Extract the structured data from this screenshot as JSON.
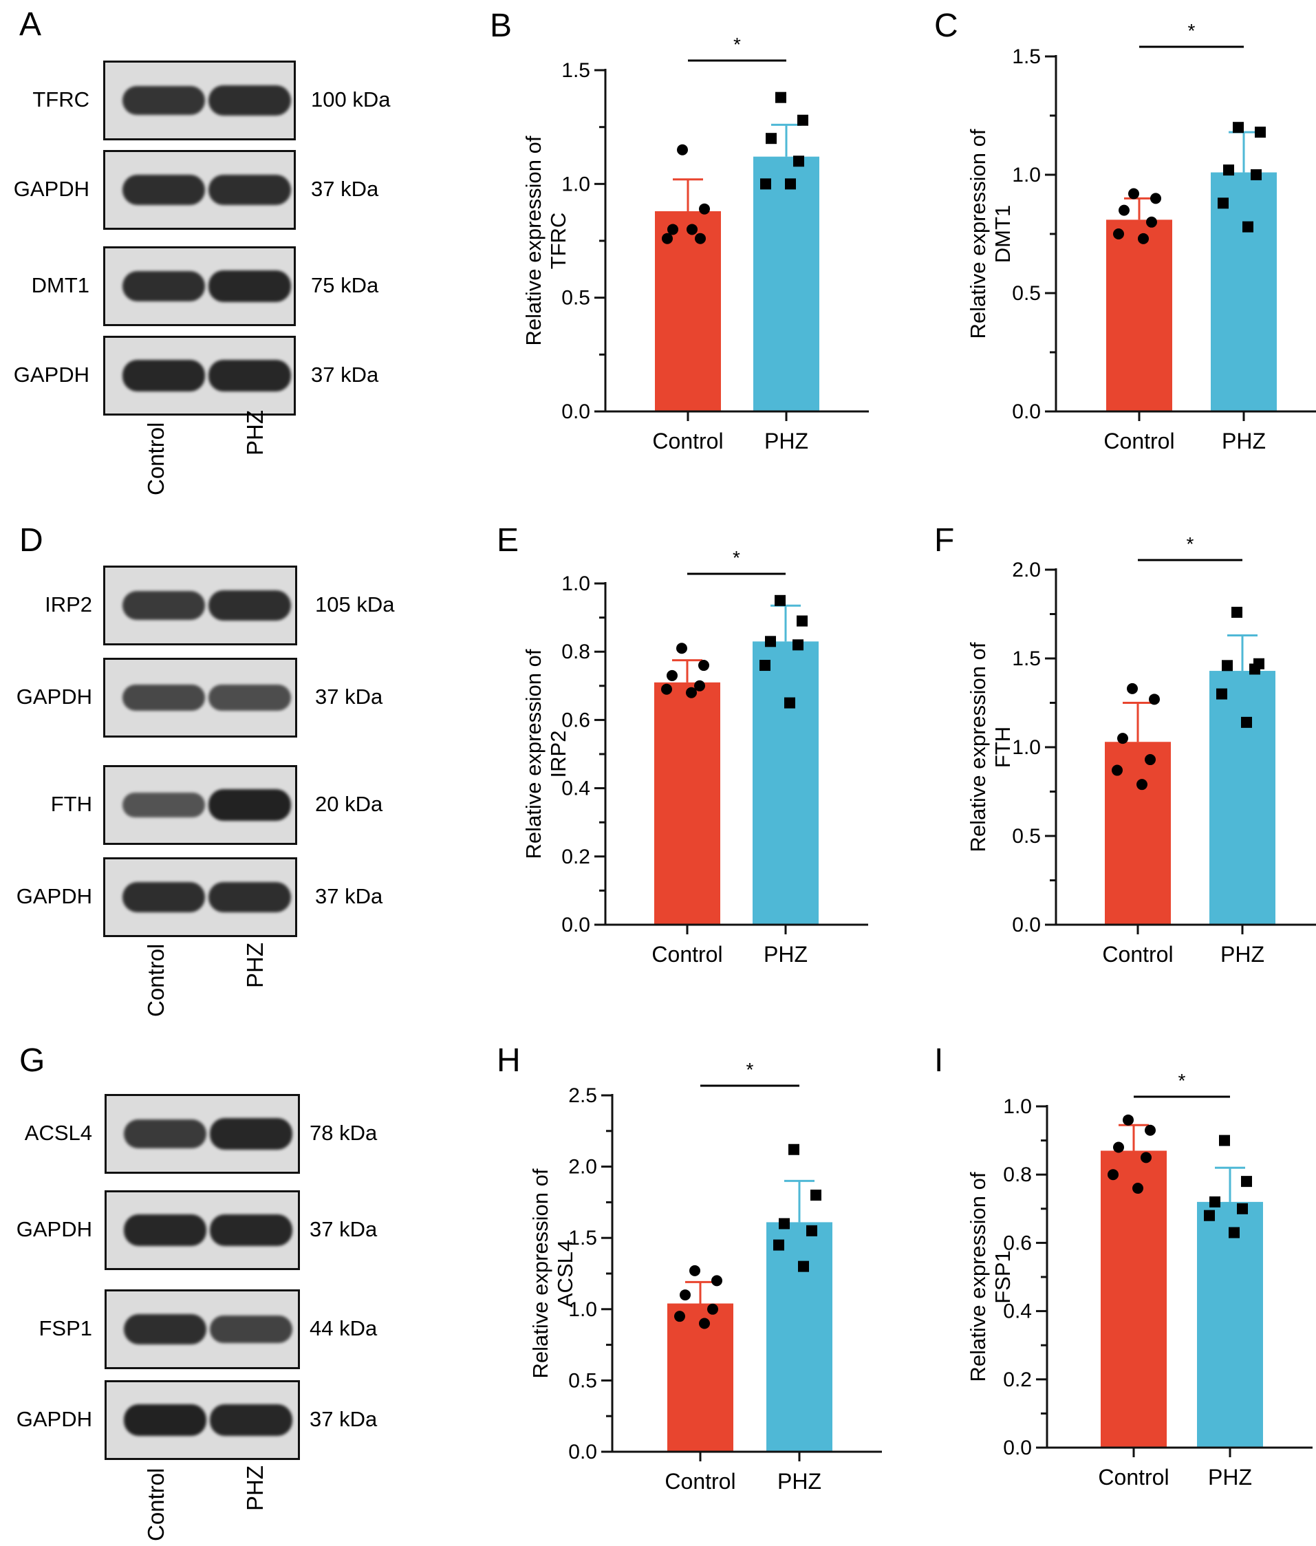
{
  "colors": {
    "control": "#e8452f",
    "phz": "#4fb8d6",
    "axis": "#111111",
    "blot_bg": "#dcdcdc",
    "band": "#1c1c1c"
  },
  "blot_groups": [
    {
      "letter": "A",
      "lanes": [
        "Control",
        "PHZ"
      ],
      "blots": [
        {
          "protein": "TFRC",
          "size": "100 kDa",
          "band_strength": [
            0.8,
            0.85
          ]
        },
        {
          "protein": "GAPDH",
          "size": "37 kDa",
          "band_strength": [
            0.85,
            0.85
          ]
        },
        {
          "protein": "DMT1",
          "size": "75 kDa",
          "band_strength": [
            0.85,
            0.9
          ]
        },
        {
          "protein": "GAPDH",
          "size": "37 kDa",
          "band_strength": [
            0.9,
            0.9
          ]
        }
      ]
    },
    {
      "letter": "D",
      "lanes": [
        "Control",
        "PHZ"
      ],
      "blots": [
        {
          "protein": "IRP2",
          "size": "105 kDa",
          "band_strength": [
            0.75,
            0.85
          ]
        },
        {
          "protein": "GAPDH",
          "size": "37 kDa",
          "band_strength": [
            0.65,
            0.6
          ]
        },
        {
          "protein": "FTH",
          "size": "20 kDa",
          "band_strength": [
            0.55,
            0.95
          ]
        },
        {
          "protein": "GAPDH",
          "size": "37 kDa",
          "band_strength": [
            0.85,
            0.85
          ]
        }
      ]
    },
    {
      "letter": "G",
      "lanes": [
        "Control",
        "PHZ"
      ],
      "blots": [
        {
          "protein": "ACSL4",
          "size": "78 kDa",
          "band_strength": [
            0.75,
            0.9
          ]
        },
        {
          "protein": "GAPDH",
          "size": "37 kDa",
          "band_strength": [
            0.9,
            0.9
          ]
        },
        {
          "protein": "FSP1",
          "size": "44 kDa",
          "band_strength": [
            0.85,
            0.7
          ]
        },
        {
          "protein": "GAPDH",
          "size": "37 kDa",
          "band_strength": [
            0.95,
            0.9
          ]
        }
      ]
    }
  ],
  "chart_data": [
    {
      "letter": "B",
      "type": "bar",
      "categories": [
        "Control",
        "PHZ"
      ],
      "ylabel": [
        "Relative expression of",
        "TFRC"
      ],
      "ylim": [
        0,
        1.5
      ],
      "yticks": [
        "0.0",
        "0.5",
        "1.0",
        "1.5"
      ],
      "values": [
        0.88,
        1.12
      ],
      "errors": [
        0.14,
        0.14
      ],
      "points": [
        [
          1.15,
          0.89,
          0.8,
          0.76,
          0.76,
          0.8
        ],
        [
          1.38,
          1.28,
          1.2,
          1.1,
          1.0,
          1.0
        ]
      ],
      "significance": "*"
    },
    {
      "letter": "C",
      "type": "bar",
      "categories": [
        "Control",
        "PHZ"
      ],
      "ylabel": [
        "Relative expression of",
        "DMT1"
      ],
      "ylim": [
        0,
        1.5
      ],
      "yticks": [
        "0.0",
        "0.5",
        "1.0",
        "1.5"
      ],
      "values": [
        0.81,
        1.01
      ],
      "errors": [
        0.09,
        0.17
      ],
      "points": [
        [
          0.92,
          0.9,
          0.85,
          0.8,
          0.75,
          0.73
        ],
        [
          1.2,
          1.18,
          1.02,
          1.0,
          0.88,
          0.78
        ]
      ],
      "significance": "*"
    },
    {
      "letter": "E",
      "type": "bar",
      "categories": [
        "Control",
        "PHZ"
      ],
      "ylabel": [
        "Relative expression of",
        "IRP2"
      ],
      "ylim": [
        0,
        1.0
      ],
      "yticks": [
        "0.0",
        "0.2",
        "0.4",
        "0.6",
        "0.8",
        "1.0"
      ],
      "values": [
        0.71,
        0.83
      ],
      "errors": [
        0.065,
        0.105
      ],
      "points": [
        [
          0.81,
          0.76,
          0.73,
          0.7,
          0.69,
          0.68
        ],
        [
          0.95,
          0.89,
          0.83,
          0.82,
          0.76,
          0.65
        ]
      ],
      "significance": "*"
    },
    {
      "letter": "F",
      "type": "bar",
      "categories": [
        "Control",
        "PHZ"
      ],
      "ylabel": [
        "Relative expression of",
        "FTH"
      ],
      "ylim": [
        0,
        2.0
      ],
      "yticks": [
        "0.0",
        "0.5",
        "1.0",
        "1.5",
        "2.0"
      ],
      "values": [
        1.03,
        1.43
      ],
      "errors": [
        0.22,
        0.2
      ],
      "points": [
        [
          1.33,
          1.27,
          1.05,
          0.93,
          0.87,
          0.79
        ],
        [
          1.76,
          1.47,
          1.46,
          1.44,
          1.3,
          1.14
        ]
      ],
      "significance": "*"
    },
    {
      "letter": "H",
      "type": "bar",
      "categories": [
        "Control",
        "PHZ"
      ],
      "ylabel": [
        "Relative expression of",
        "ACSL4"
      ],
      "ylim": [
        0,
        2.5
      ],
      "yticks": [
        "0.0",
        "0.5",
        "1.0",
        "1.5",
        "2.0",
        "2.5"
      ],
      "values": [
        1.04,
        1.61
      ],
      "errors": [
        0.15,
        0.29
      ],
      "points": [
        [
          1.27,
          1.2,
          1.1,
          1.0,
          0.95,
          0.9
        ],
        [
          2.12,
          1.8,
          1.6,
          1.55,
          1.45,
          1.3
        ]
      ],
      "significance": "*"
    },
    {
      "letter": "I",
      "type": "bar",
      "categories": [
        "Control",
        "PHZ"
      ],
      "ylabel": [
        "Relative expression of",
        "FSP1"
      ],
      "ylim": [
        0,
        1.0
      ],
      "yticks": [
        "0.0",
        "0.2",
        "0.4",
        "0.6",
        "0.8",
        "1.0"
      ],
      "values": [
        0.87,
        0.72
      ],
      "errors": [
        0.075,
        0.1
      ],
      "points": [
        [
          0.96,
          0.93,
          0.88,
          0.85,
          0.8,
          0.76
        ],
        [
          0.9,
          0.78,
          0.72,
          0.7,
          0.68,
          0.63
        ]
      ],
      "significance": "*"
    }
  ]
}
